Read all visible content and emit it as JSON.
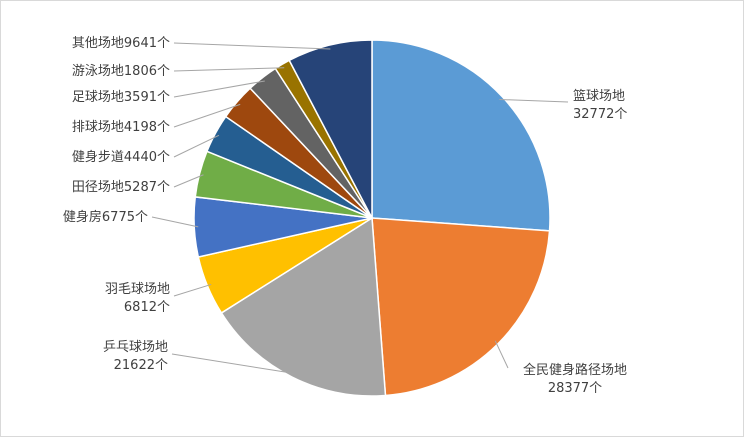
{
  "chart_data": {
    "type": "pie",
    "categories": [
      "篮球场地",
      "全民健身路径场地",
      "乒乓球场地",
      "羽毛球场地",
      "健身房",
      "田径场地",
      "健身步道",
      "排球场地",
      "足球场地",
      "游泳场地",
      "其他场地"
    ],
    "values": [
      32772,
      28377,
      21622,
      6812,
      6775,
      5287,
      4440,
      4198,
      3591,
      1806,
      9641
    ],
    "value_labels": [
      "32772个",
      "28377个",
      "21622个",
      "6812个",
      "6775个",
      "5287个",
      "4440个",
      "4198个",
      "3591个",
      "1806个",
      "9641个"
    ],
    "colors": [
      "#5b9bd5",
      "#ed7d31",
      "#a5a5a5",
      "#ffc000",
      "#4472c4",
      "#70ad47",
      "#255e91",
      "#9e480e",
      "#636363",
      "#997300",
      "#264478"
    ]
  }
}
